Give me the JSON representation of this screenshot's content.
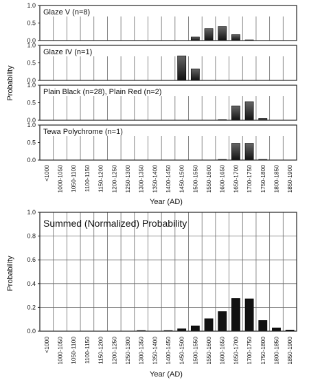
{
  "colors": {
    "frame": "#222222",
    "grid": "#6a6a6a",
    "bar_top": "#666666",
    "bar_bottom": "#111111",
    "background": "#ffffff"
  },
  "chart_data": [
    {
      "type": "bar",
      "title": "Glaze V (n=8)",
      "ylabel": "",
      "xlabel": "",
      "ylim": [
        0,
        1.0
      ],
      "yticks": [
        "1.0",
        "0.5",
        "0.0"
      ],
      "grid": "vertical",
      "categories": [
        "<1000",
        "1000-1050",
        "1050-1100",
        "1100-1150",
        "1150-1200",
        "1200-1250",
        "1250-1300",
        "1300-1350",
        "1350-1400",
        "1400-1450",
        "1450-1500",
        "1500-1550",
        "1550-1600",
        "1600-1650",
        "1650-1700",
        "1700-1750",
        "1750-1800",
        "1800-1850",
        "1850-1900"
      ],
      "values": [
        0,
        0,
        0,
        0,
        0,
        0,
        0,
        0,
        0,
        0,
        0,
        0.1,
        0.34,
        0.4,
        0.17,
        0.01,
        0,
        0,
        0
      ]
    },
    {
      "type": "bar",
      "title": "Glaze IV (n=1)",
      "ylabel": "Probability",
      "xlabel": "",
      "ylim": [
        0,
        1.0
      ],
      "yticks": [
        "1.0",
        "0.5",
        "0.0"
      ],
      "grid": "vertical",
      "categories": [
        "<1000",
        "1000-1050",
        "1050-1100",
        "1100-1150",
        "1150-1200",
        "1200-1250",
        "1250-1300",
        "1300-1350",
        "1350-1400",
        "1400-1450",
        "1450-1500",
        "1500-1550",
        "1550-1600",
        "1600-1650",
        "1650-1700",
        "1700-1750",
        "1750-1800",
        "1800-1850",
        "1850-1900"
      ],
      "values": [
        0,
        0,
        0,
        0,
        0,
        0,
        0,
        0,
        0,
        0,
        0.7,
        0.33,
        0,
        0,
        0,
        0,
        0,
        0,
        0
      ]
    },
    {
      "type": "bar",
      "title": "Plain Black (n=28), Plain Red (n=2)",
      "ylabel": "",
      "xlabel": "",
      "ylim": [
        0,
        1.0
      ],
      "yticks": [
        "1.0",
        "0.5",
        "0.0"
      ],
      "grid": "vertical",
      "categories": [
        "<1000",
        "1000-1050",
        "1050-1100",
        "1100-1150",
        "1150-1200",
        "1200-1250",
        "1250-1300",
        "1300-1350",
        "1350-1400",
        "1400-1450",
        "1450-1500",
        "1500-1550",
        "1550-1600",
        "1600-1650",
        "1650-1700",
        "1700-1750",
        "1750-1800",
        "1800-1850",
        "1850-1900"
      ],
      "values": [
        0,
        0,
        0,
        0,
        0,
        0,
        0,
        0,
        0,
        0,
        0,
        0,
        0,
        0.01,
        0.41,
        0.53,
        0.05,
        0,
        0
      ]
    },
    {
      "type": "bar",
      "title": "Tewa Polychrome (n=1)",
      "ylabel": "",
      "xlabel": "Year (AD)",
      "ylim": [
        0,
        1.0
      ],
      "yticks": [
        "1.0",
        "0.5",
        "0.0"
      ],
      "grid": "vertical",
      "categories": [
        "<1000",
        "1000-1050",
        "1050-1100",
        "1100-1150",
        "1150-1200",
        "1200-1250",
        "1250-1300",
        "1300-1350",
        "1350-1400",
        "1400-1450",
        "1450-1500",
        "1500-1550",
        "1550-1600",
        "1600-1650",
        "1650-1700",
        "1700-1750",
        "1750-1800",
        "1800-1850",
        "1850-1900"
      ],
      "values": [
        0,
        0,
        0,
        0,
        0,
        0,
        0,
        0,
        0,
        0,
        0,
        0,
        0,
        0.01,
        0.48,
        0.48,
        0.02,
        0,
        0
      ]
    },
    {
      "type": "bar",
      "title": "Summed (Normalized) Probability",
      "ylabel": "Probability",
      "xlabel": "Year (AD)",
      "ylim": [
        0,
        1.0
      ],
      "yticks": [
        "1.0",
        "0.8",
        "0.6",
        "0.4",
        "0.2",
        "0.0"
      ],
      "grid": "both",
      "categories": [
        "<1000",
        "1000-1050",
        "1050-1100",
        "1100-1150",
        "1150-1200",
        "1200-1250",
        "1250-1300",
        "1300-1350",
        "1350-1400",
        "1400-1450",
        "1450-1500",
        "1500-1550",
        "1550-1600",
        "1600-1650",
        "1650-1700",
        "1700-1750",
        "1750-1800",
        "1800-1850",
        "1850-1900"
      ],
      "values": [
        0,
        0,
        0,
        0,
        0,
        0,
        0,
        0.003,
        0,
        0.004,
        0.02,
        0.045,
        0.105,
        0.165,
        0.275,
        0.272,
        0.09,
        0.028,
        0.01
      ]
    }
  ]
}
